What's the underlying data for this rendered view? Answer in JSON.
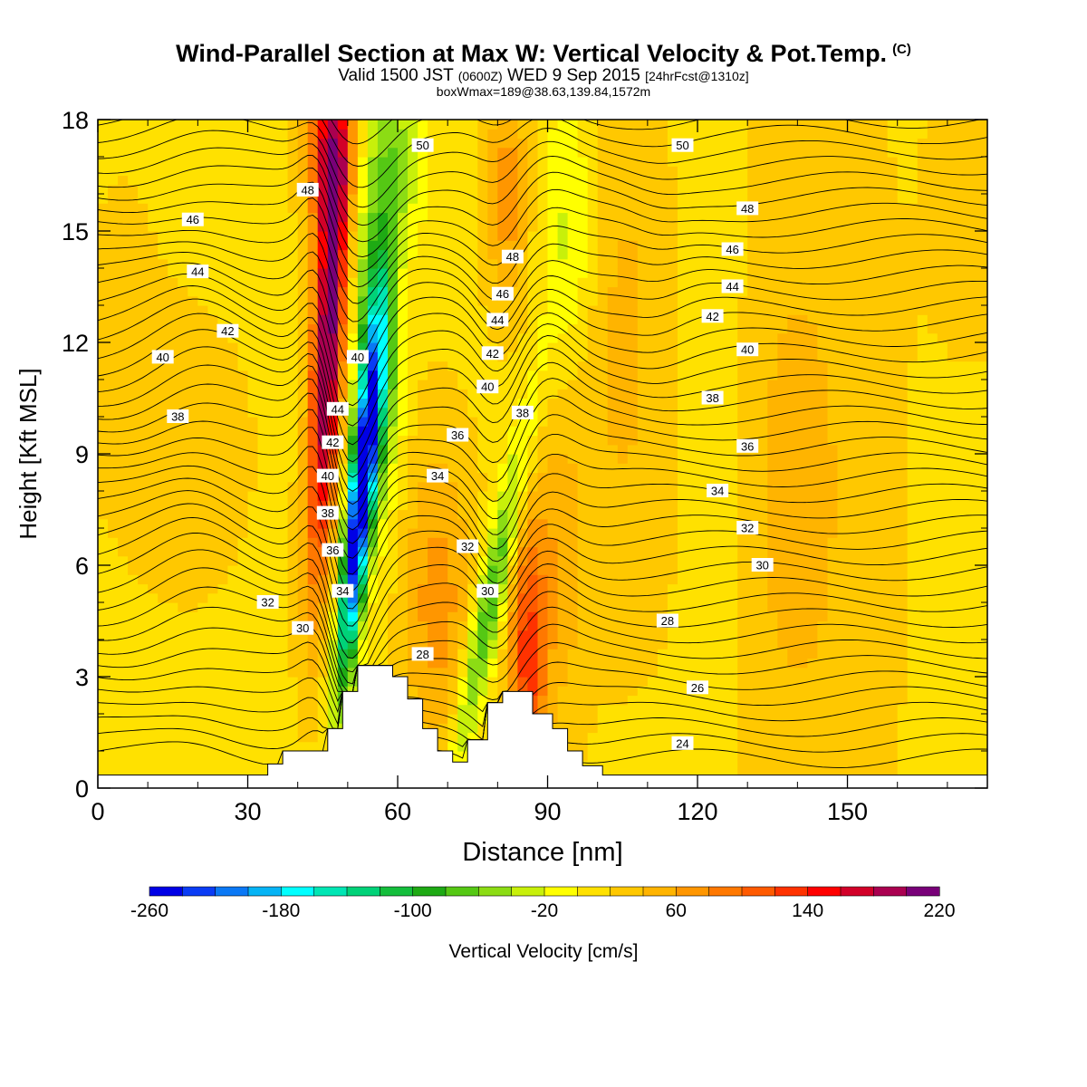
{
  "title": {
    "main": "Wind-Parallel Section at Max W: Vertical Velocity & Pot.Temp.",
    "copyright": "(C)",
    "valid_prefix": "Valid 1500 JST",
    "valid_utc": "(0600Z)",
    "valid_date": "WED 9 Sep 2015",
    "forecast": "[24hrFcst@1310z]",
    "box_info": "boxWmax=189@38.63,139.84,1572m"
  },
  "chart_data": {
    "type": "contour cross-section",
    "xlabel": "Distance [nm]",
    "ylabel": "Height [Kft MSL]",
    "xlim": [
      0,
      178
    ],
    "ylim": [
      0,
      18
    ],
    "xticks": [
      0,
      30,
      60,
      90,
      120,
      150
    ],
    "yticks": [
      0,
      3,
      6,
      9,
      12,
      15,
      18
    ],
    "colorbar": {
      "label": "Vertical Velocity [cm/s]",
      "levels": [
        -260,
        -240,
        -220,
        -200,
        -180,
        -160,
        -140,
        -120,
        -100,
        -80,
        -60,
        -40,
        -20,
        0,
        20,
        40,
        60,
        80,
        100,
        120,
        140,
        160,
        180,
        200,
        220
      ],
      "tick_labels": [
        -260,
        -180,
        -100,
        -20,
        60,
        140,
        220
      ],
      "colors": [
        "#0000e6",
        "#0a3cf5",
        "#0a78f5",
        "#05b4f5",
        "#00ffff",
        "#00e6b4",
        "#00d278",
        "#14be3c",
        "#1eaa14",
        "#55c814",
        "#8cdc14",
        "#c8f00a",
        "#ffff00",
        "#ffe100",
        "#ffc800",
        "#ffb400",
        "#ff9600",
        "#ff7800",
        "#ff5a00",
        "#ff3200",
        "#ff0000",
        "#d20028",
        "#aa0050",
        "#780078"
      ]
    },
    "terrain_kft": [
      [
        0,
        0.35
      ],
      [
        34,
        0.35
      ],
      [
        34,
        0.65
      ],
      [
        37,
        0.65
      ],
      [
        37,
        1.0
      ],
      [
        40,
        1.0
      ],
      [
        40,
        1.0
      ],
      [
        46,
        1.0
      ],
      [
        46,
        1.6
      ],
      [
        49,
        1.6
      ],
      [
        49,
        2.6
      ],
      [
        52,
        2.6
      ],
      [
        52,
        3.3
      ],
      [
        59,
        3.3
      ],
      [
        59,
        3.0
      ],
      [
        62,
        3.0
      ],
      [
        62,
        2.4
      ],
      [
        65,
        2.4
      ],
      [
        65,
        1.6
      ],
      [
        68,
        1.6
      ],
      [
        68,
        1.0
      ],
      [
        71,
        1.0
      ],
      [
        71,
        0.7
      ],
      [
        74,
        0.7
      ],
      [
        74,
        1.3
      ],
      [
        78,
        1.3
      ],
      [
        78,
        2.3
      ],
      [
        81,
        2.3
      ],
      [
        81,
        2.6
      ],
      [
        87,
        2.6
      ],
      [
        87,
        2.0
      ],
      [
        91,
        2.0
      ],
      [
        91,
        1.6
      ],
      [
        94,
        1.6
      ],
      [
        94,
        1.0
      ],
      [
        97,
        1.0
      ],
      [
        97,
        0.6
      ],
      [
        101,
        0.6
      ],
      [
        101,
        0.35
      ],
      [
        178,
        0.35
      ]
    ],
    "theta_labels": [
      {
        "value": "50",
        "x": 65,
        "y": 17.3
      },
      {
        "value": "50",
        "x": 117,
        "y": 17.3
      },
      {
        "value": "48",
        "x": 42,
        "y": 16.1
      },
      {
        "value": "48",
        "x": 130,
        "y": 15.6
      },
      {
        "value": "48",
        "x": 83,
        "y": 14.3
      },
      {
        "value": "46",
        "x": 19,
        "y": 15.3
      },
      {
        "value": "46",
        "x": 127,
        "y": 14.5
      },
      {
        "value": "46",
        "x": 81,
        "y": 13.3
      },
      {
        "value": "44",
        "x": 20,
        "y": 13.9
      },
      {
        "value": "44",
        "x": 127,
        "y": 13.5
      },
      {
        "value": "44",
        "x": 80,
        "y": 12.6
      },
      {
        "value": "42",
        "x": 26,
        "y": 12.3
      },
      {
        "value": "42",
        "x": 123,
        "y": 12.7
      },
      {
        "value": "42",
        "x": 79,
        "y": 11.7
      },
      {
        "value": "40",
        "x": 13,
        "y": 11.6
      },
      {
        "value": "40",
        "x": 130,
        "y": 11.8
      },
      {
        "value": "40",
        "x": 78,
        "y": 10.8
      },
      {
        "value": "40",
        "x": 52,
        "y": 11.6
      },
      {
        "value": "38",
        "x": 16,
        "y": 10.0
      },
      {
        "value": "38",
        "x": 123,
        "y": 10.5
      },
      {
        "value": "38",
        "x": 85,
        "y": 10.1
      },
      {
        "value": "36",
        "x": 130,
        "y": 9.2
      },
      {
        "value": "36",
        "x": 72,
        "y": 9.5
      },
      {
        "value": "34",
        "x": 124,
        "y": 8.0
      },
      {
        "value": "34",
        "x": 68,
        "y": 8.4
      },
      {
        "value": "32",
        "x": 130,
        "y": 7.0
      },
      {
        "value": "32",
        "x": 74,
        "y": 6.5
      },
      {
        "value": "32",
        "x": 34,
        "y": 5.0
      },
      {
        "value": "30",
        "x": 133,
        "y": 6.0
      },
      {
        "value": "30",
        "x": 78,
        "y": 5.3
      },
      {
        "value": "30",
        "x": 41,
        "y": 4.3
      },
      {
        "value": "28",
        "x": 114,
        "y": 4.5
      },
      {
        "value": "28",
        "x": 65,
        "y": 3.6
      },
      {
        "value": "26",
        "x": 120,
        "y": 2.7
      },
      {
        "value": "24",
        "x": 117,
        "y": 1.2
      },
      {
        "value": "44",
        "x": 48,
        "y": 10.2
      },
      {
        "value": "42",
        "x": 47,
        "y": 9.3
      },
      {
        "value": "40",
        "x": 46,
        "y": 8.4
      },
      {
        "value": "38",
        "x": 46,
        "y": 7.4
      },
      {
        "value": "36",
        "x": 47,
        "y": 6.4
      },
      {
        "value": "34",
        "x": 49,
        "y": 5.3
      }
    ]
  }
}
